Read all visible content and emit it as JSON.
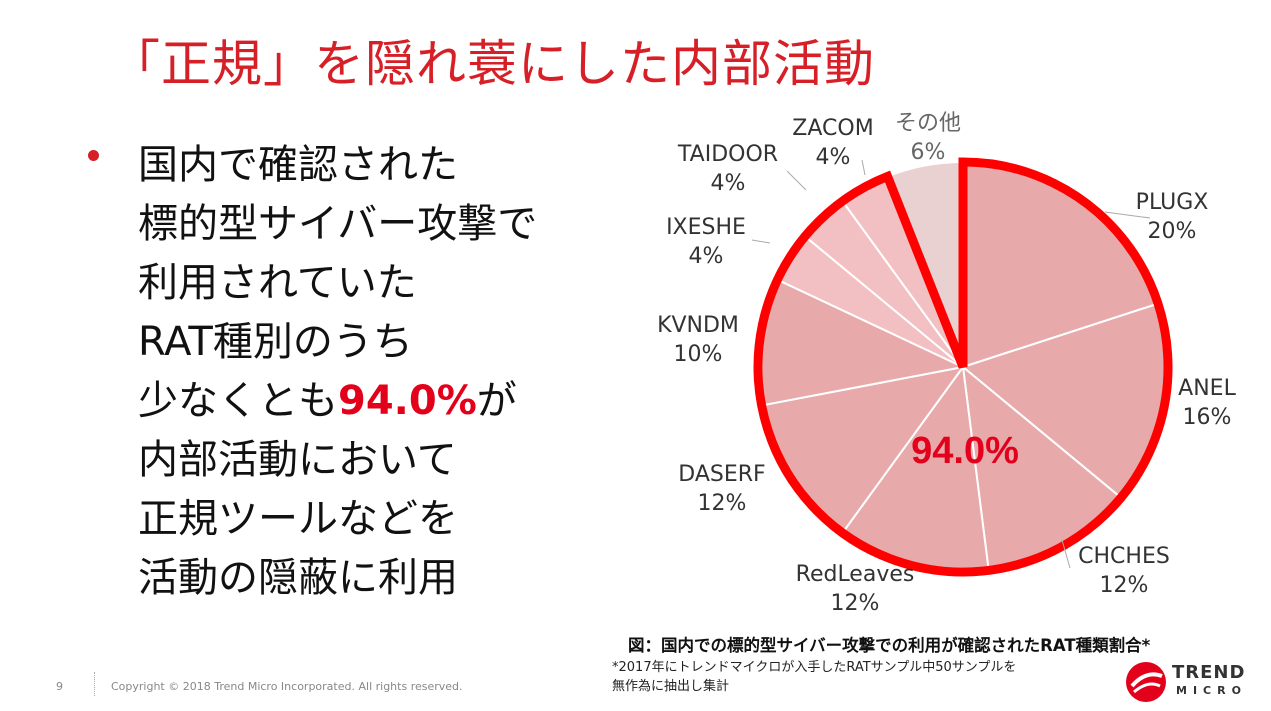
{
  "slide": {
    "title": "「正規」を隠れ蓑にした内部活動",
    "bullet_lines": [
      "国内で確認された",
      "標的型サイバー攻撃で",
      "利用されていた",
      "RAT種別のうち"
    ],
    "bullet_line5_pre": "少なくとも",
    "bullet_line5_highlight": "94.0%",
    "bullet_line5_post": "が",
    "bullet_lines_tail": [
      "内部活動において",
      "正規ツールなどを",
      "活動の隠蔽に利用"
    ],
    "caption": "図：国内での標的型サイバー攻撃での利用が確認されたRAT種類割合*",
    "footnote_lines": [
      "*2017年にトレンドマイクロが入手したRATサンプル中50サンプルを",
      "無作為に抽出し集計"
    ],
    "page_number": "9",
    "copyright": "Copyright © 2018 Trend Micro Incorporated. All rights reserved.",
    "logo": {
      "line1": "TREND",
      "line2": "MICRO",
      "icon": "trend-micro-logo-icon"
    }
  },
  "colors": {
    "accent": "#d61f26",
    "highlight_outline": "#ff0000",
    "slice_main": "#e8a9ab",
    "slice_light": "#f2c0c2",
    "slice_other": "#e9d0d1"
  },
  "chart_data": {
    "type": "pie",
    "slices": [
      {
        "name": "PLUGX",
        "value": 20,
        "label": "20%"
      },
      {
        "name": "ANEL",
        "value": 16,
        "label": "16%"
      },
      {
        "name": "CHCHES",
        "value": 12,
        "label": "12%"
      },
      {
        "name": "RedLeaves",
        "value": 12,
        "label": "12%"
      },
      {
        "name": "DASERF",
        "value": 12,
        "label": "12%"
      },
      {
        "name": "KVNDM",
        "value": 10,
        "label": "10%"
      },
      {
        "name": "IXESHE",
        "value": 4,
        "label": "4%"
      },
      {
        "name": "TAIDOOR",
        "value": 4,
        "label": "4%"
      },
      {
        "name": "ZACOM",
        "value": 4,
        "label": "4%"
      },
      {
        "name": "その他",
        "value": 6,
        "label": "6%"
      }
    ],
    "highlight_annotation": "94.0%"
  }
}
